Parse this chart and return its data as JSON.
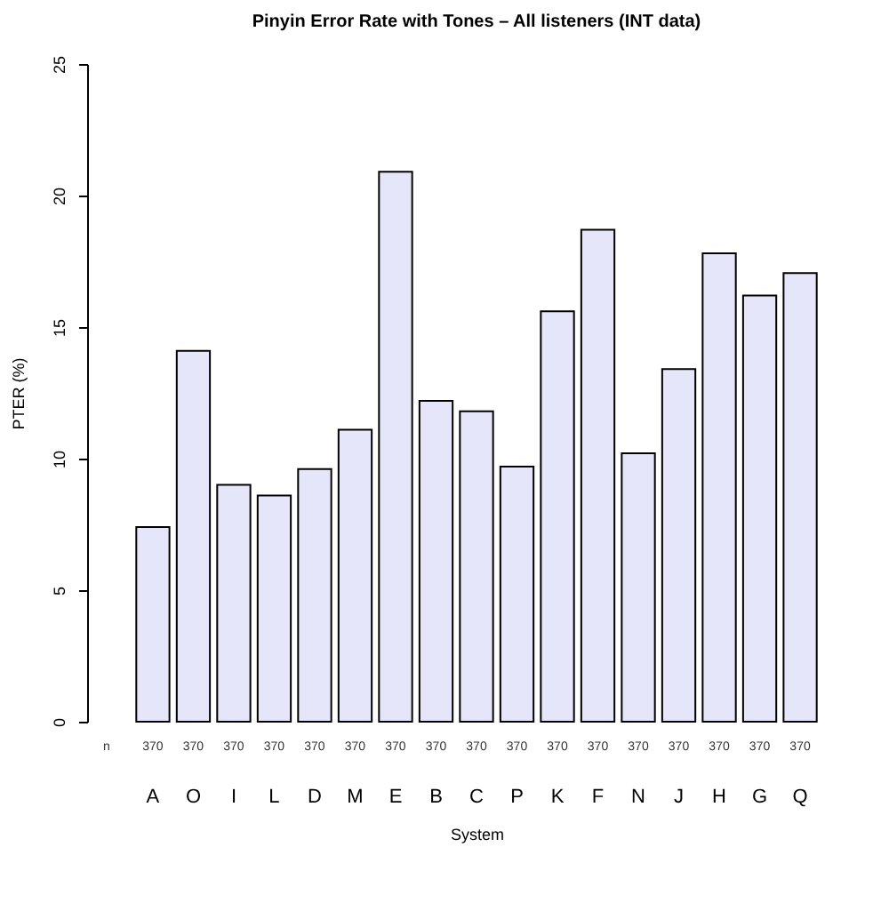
{
  "chart_data": {
    "type": "bar",
    "title": "Pinyin Error Rate with Tones – All listeners (INT data)",
    "xlabel": "System",
    "ylabel": "PTER (%)",
    "categories": [
      "A",
      "O",
      "I",
      "L",
      "D",
      "M",
      "E",
      "B",
      "C",
      "P",
      "K",
      "F",
      "N",
      "J",
      "H",
      "G",
      "Q"
    ],
    "values": [
      7.4,
      14.1,
      9.0,
      8.6,
      9.6,
      11.1,
      20.9,
      12.2,
      11.8,
      9.7,
      15.6,
      18.7,
      10.2,
      13.4,
      17.8,
      16.2,
      17.05
    ],
    "color": "#e6e6fa",
    "ylim": [
      0,
      25
    ],
    "yticks": [
      0,
      5,
      10,
      15,
      20,
      25
    ],
    "grid": false,
    "annotations": [
      "n",
      "370",
      "370",
      "370",
      "370",
      "370",
      "370",
      "370",
      "370",
      "370",
      "370",
      "370",
      "370",
      "370",
      "370",
      "370",
      "370",
      "370"
    ]
  }
}
